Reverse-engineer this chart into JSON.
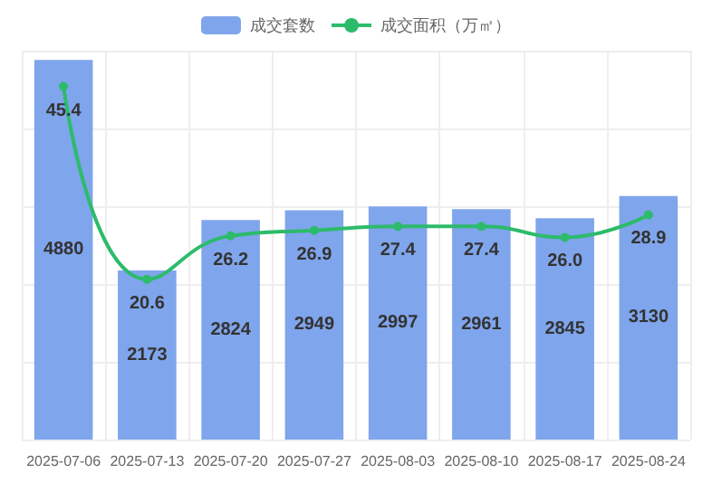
{
  "chart_data": {
    "type": "bar",
    "categories": [
      "2025-07-06",
      "2025-07-13",
      "2025-07-20",
      "2025-07-27",
      "2025-08-03",
      "2025-08-10",
      "2025-08-17",
      "2025-08-24"
    ],
    "series": [
      {
        "name": "成交套数",
        "color": "#7fa5ec",
        "values": [
          4880,
          2173,
          2824,
          2949,
          2997,
          2961,
          2845,
          3130
        ]
      },
      {
        "name": "成交面积（万㎡）",
        "type": "line",
        "axis": "y2",
        "color": "#2dbb6b",
        "values": [
          45.4,
          20.6,
          26.2,
          26.9,
          27.4,
          27.4,
          26.0,
          28.9
        ],
        "value_labels": [
          "45.4",
          "20.6",
          "26.2",
          "26.9",
          "27.4",
          "27.4",
          "26.0",
          "28.9"
        ]
      }
    ],
    "data_labels": true,
    "grid": true,
    "legend": "top",
    "marker": "circle",
    "tick_labels": "x"
  }
}
